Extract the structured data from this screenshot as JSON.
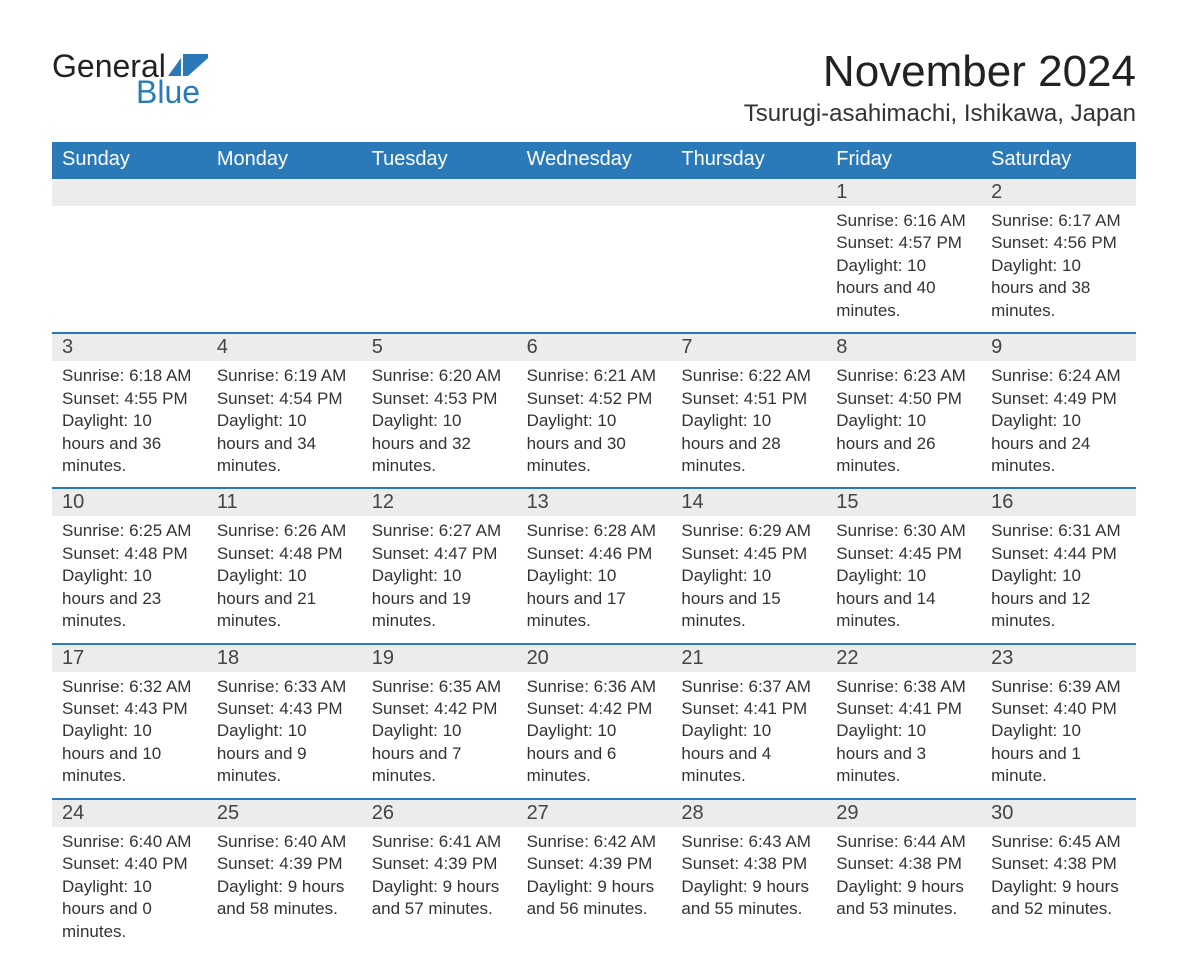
{
  "brand": {
    "word1": "General",
    "word2": "Blue",
    "flag_color": "#2a7ab9"
  },
  "title": "November 2024",
  "location": "Tsurugi-asahimachi, Ishikawa, Japan",
  "colors": {
    "header_bg": "#2a7ab9",
    "header_text": "#ffffff",
    "rule": "#2a7ab9",
    "daynum_bg": "#ececec",
    "body_text": "#333333",
    "page_bg": "#ffffff"
  },
  "weekdays": [
    "Sunday",
    "Monday",
    "Tuesday",
    "Wednesday",
    "Thursday",
    "Friday",
    "Saturday"
  ],
  "weeks": [
    [
      null,
      null,
      null,
      null,
      null,
      {
        "n": "1",
        "sunrise": "Sunrise: 6:16 AM",
        "sunset": "Sunset: 4:57 PM",
        "daylight": "Daylight: 10 hours and 40 minutes."
      },
      {
        "n": "2",
        "sunrise": "Sunrise: 6:17 AM",
        "sunset": "Sunset: 4:56 PM",
        "daylight": "Daylight: 10 hours and 38 minutes."
      }
    ],
    [
      {
        "n": "3",
        "sunrise": "Sunrise: 6:18 AM",
        "sunset": "Sunset: 4:55 PM",
        "daylight": "Daylight: 10 hours and 36 minutes."
      },
      {
        "n": "4",
        "sunrise": "Sunrise: 6:19 AM",
        "sunset": "Sunset: 4:54 PM",
        "daylight": "Daylight: 10 hours and 34 minutes."
      },
      {
        "n": "5",
        "sunrise": "Sunrise: 6:20 AM",
        "sunset": "Sunset: 4:53 PM",
        "daylight": "Daylight: 10 hours and 32 minutes."
      },
      {
        "n": "6",
        "sunrise": "Sunrise: 6:21 AM",
        "sunset": "Sunset: 4:52 PM",
        "daylight": "Daylight: 10 hours and 30 minutes."
      },
      {
        "n": "7",
        "sunrise": "Sunrise: 6:22 AM",
        "sunset": "Sunset: 4:51 PM",
        "daylight": "Daylight: 10 hours and 28 minutes."
      },
      {
        "n": "8",
        "sunrise": "Sunrise: 6:23 AM",
        "sunset": "Sunset: 4:50 PM",
        "daylight": "Daylight: 10 hours and 26 minutes."
      },
      {
        "n": "9",
        "sunrise": "Sunrise: 6:24 AM",
        "sunset": "Sunset: 4:49 PM",
        "daylight": "Daylight: 10 hours and 24 minutes."
      }
    ],
    [
      {
        "n": "10",
        "sunrise": "Sunrise: 6:25 AM",
        "sunset": "Sunset: 4:48 PM",
        "daylight": "Daylight: 10 hours and 23 minutes."
      },
      {
        "n": "11",
        "sunrise": "Sunrise: 6:26 AM",
        "sunset": "Sunset: 4:48 PM",
        "daylight": "Daylight: 10 hours and 21 minutes."
      },
      {
        "n": "12",
        "sunrise": "Sunrise: 6:27 AM",
        "sunset": "Sunset: 4:47 PM",
        "daylight": "Daylight: 10 hours and 19 minutes."
      },
      {
        "n": "13",
        "sunrise": "Sunrise: 6:28 AM",
        "sunset": "Sunset: 4:46 PM",
        "daylight": "Daylight: 10 hours and 17 minutes."
      },
      {
        "n": "14",
        "sunrise": "Sunrise: 6:29 AM",
        "sunset": "Sunset: 4:45 PM",
        "daylight": "Daylight: 10 hours and 15 minutes."
      },
      {
        "n": "15",
        "sunrise": "Sunrise: 6:30 AM",
        "sunset": "Sunset: 4:45 PM",
        "daylight": "Daylight: 10 hours and 14 minutes."
      },
      {
        "n": "16",
        "sunrise": "Sunrise: 6:31 AM",
        "sunset": "Sunset: 4:44 PM",
        "daylight": "Daylight: 10 hours and 12 minutes."
      }
    ],
    [
      {
        "n": "17",
        "sunrise": "Sunrise: 6:32 AM",
        "sunset": "Sunset: 4:43 PM",
        "daylight": "Daylight: 10 hours and 10 minutes."
      },
      {
        "n": "18",
        "sunrise": "Sunrise: 6:33 AM",
        "sunset": "Sunset: 4:43 PM",
        "daylight": "Daylight: 10 hours and 9 minutes."
      },
      {
        "n": "19",
        "sunrise": "Sunrise: 6:35 AM",
        "sunset": "Sunset: 4:42 PM",
        "daylight": "Daylight: 10 hours and 7 minutes."
      },
      {
        "n": "20",
        "sunrise": "Sunrise: 6:36 AM",
        "sunset": "Sunset: 4:42 PM",
        "daylight": "Daylight: 10 hours and 6 minutes."
      },
      {
        "n": "21",
        "sunrise": "Sunrise: 6:37 AM",
        "sunset": "Sunset: 4:41 PM",
        "daylight": "Daylight: 10 hours and 4 minutes."
      },
      {
        "n": "22",
        "sunrise": "Sunrise: 6:38 AM",
        "sunset": "Sunset: 4:41 PM",
        "daylight": "Daylight: 10 hours and 3 minutes."
      },
      {
        "n": "23",
        "sunrise": "Sunrise: 6:39 AM",
        "sunset": "Sunset: 4:40 PM",
        "daylight": "Daylight: 10 hours and 1 minute."
      }
    ],
    [
      {
        "n": "24",
        "sunrise": "Sunrise: 6:40 AM",
        "sunset": "Sunset: 4:40 PM",
        "daylight": "Daylight: 10 hours and 0 minutes."
      },
      {
        "n": "25",
        "sunrise": "Sunrise: 6:40 AM",
        "sunset": "Sunset: 4:39 PM",
        "daylight": "Daylight: 9 hours and 58 minutes."
      },
      {
        "n": "26",
        "sunrise": "Sunrise: 6:41 AM",
        "sunset": "Sunset: 4:39 PM",
        "daylight": "Daylight: 9 hours and 57 minutes."
      },
      {
        "n": "27",
        "sunrise": "Sunrise: 6:42 AM",
        "sunset": "Sunset: 4:39 PM",
        "daylight": "Daylight: 9 hours and 56 minutes."
      },
      {
        "n": "28",
        "sunrise": "Sunrise: 6:43 AM",
        "sunset": "Sunset: 4:38 PM",
        "daylight": "Daylight: 9 hours and 55 minutes."
      },
      {
        "n": "29",
        "sunrise": "Sunrise: 6:44 AM",
        "sunset": "Sunset: 4:38 PM",
        "daylight": "Daylight: 9 hours and 53 minutes."
      },
      {
        "n": "30",
        "sunrise": "Sunrise: 6:45 AM",
        "sunset": "Sunset: 4:38 PM",
        "daylight": "Daylight: 9 hours and 52 minutes."
      }
    ]
  ]
}
